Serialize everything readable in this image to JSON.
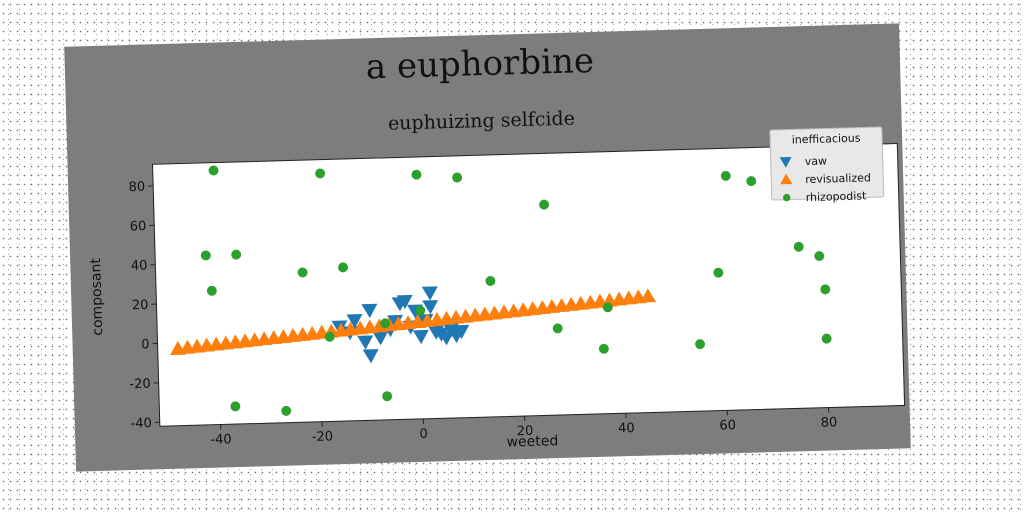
{
  "chart_data": {
    "type": "scatter",
    "title": "a euphorbine",
    "subtitle": "euphuizing selfcide",
    "xlabel": "weeted",
    "ylabel": "composant",
    "xlim": [
      -52,
      95
    ],
    "ylim": [
      -42,
      91
    ],
    "xticks": [
      -40,
      -20,
      0,
      20,
      40,
      60,
      80
    ],
    "yticks": [
      -40,
      -20,
      0,
      20,
      40,
      60,
      80
    ],
    "grid": false,
    "legend": {
      "title": "inefficacious",
      "position": "top-right"
    },
    "series": [
      {
        "name": "vaw",
        "marker": "triangle-down",
        "color": "#1f77b4",
        "points": [
          [
            -16,
            6
          ],
          [
            -14,
            3
          ],
          [
            -13,
            9
          ],
          [
            -11,
            -2
          ],
          [
            -10,
            14
          ],
          [
            -10,
            -9
          ],
          [
            -8,
            0
          ],
          [
            -6,
            4
          ],
          [
            -5,
            8
          ],
          [
            -4,
            17
          ],
          [
            -3,
            18
          ],
          [
            -2,
            5
          ],
          [
            -1,
            13
          ],
          [
            0,
            0
          ],
          [
            1,
            8
          ],
          [
            2,
            15
          ],
          [
            2,
            22
          ],
          [
            3,
            2
          ],
          [
            4,
            1
          ],
          [
            5,
            -1
          ],
          [
            6,
            3
          ],
          [
            7,
            0
          ],
          [
            8,
            2
          ]
        ]
      },
      {
        "name": "revisualized",
        "marker": "triangle-up",
        "color": "#ff7f0e",
        "x_start": -48,
        "x_end": 45,
        "y_start": -3,
        "y_end": 17,
        "count": 50
      },
      {
        "name": "rhizopodist",
        "marker": "circle",
        "color": "#2ca02c",
        "points": [
          [
            -40,
            87
          ],
          [
            -42,
            44
          ],
          [
            -36,
            44
          ],
          [
            -41,
            26
          ],
          [
            -37,
            -33
          ],
          [
            -27,
            -36
          ],
          [
            -19,
            84
          ],
          [
            -23,
            34
          ],
          [
            -15,
            36
          ],
          [
            -18,
            1
          ],
          [
            -7,
            7
          ],
          [
            -7,
            -30
          ],
          [
            0,
            13
          ],
          [
            0,
            82
          ],
          [
            8,
            80
          ],
          [
            14,
            27
          ],
          [
            25,
            65
          ],
          [
            27,
            2
          ],
          [
            36,
            -9
          ],
          [
            37,
            12
          ],
          [
            55,
            -8
          ],
          [
            59,
            28
          ],
          [
            61,
            77
          ],
          [
            66,
            74
          ],
          [
            75,
            40
          ],
          [
            79,
            35
          ],
          [
            80,
            18
          ],
          [
            80,
            -7
          ]
        ]
      }
    ]
  }
}
